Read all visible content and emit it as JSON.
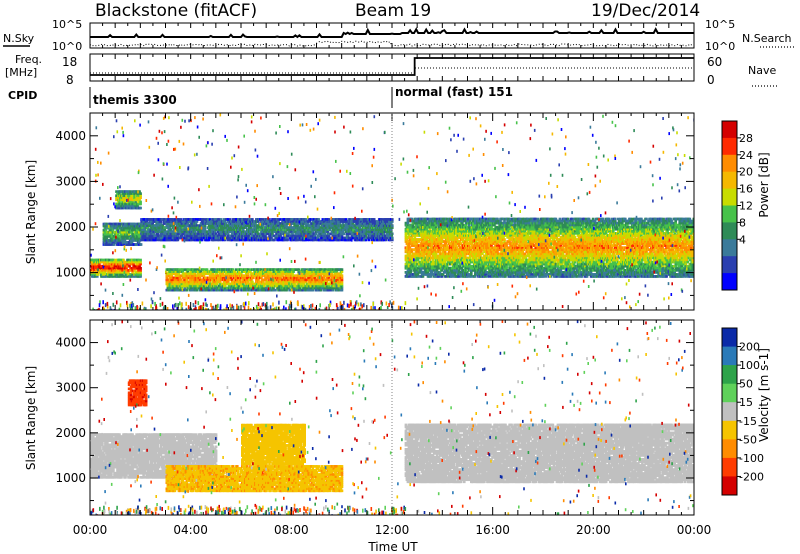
{
  "header": {
    "radar": "Blackstone (fitACF)",
    "beam": "Beam 19",
    "date": "19/Dec/2014"
  },
  "top_panels": {
    "nsky_label": "N.Sky",
    "nsky_ticks": [
      "10^5",
      "10^0"
    ],
    "nsearch_label": "N.Search",
    "nsearch_ticks": [
      "10^5",
      "10^0"
    ],
    "freq_label": "Freq.",
    "freq_unit": "[MHz]",
    "freq_ticks": [
      "18",
      "8"
    ],
    "nave_label": "Nave",
    "nave_ticks": [
      "60",
      "0"
    ],
    "cpid_label": "CPID",
    "cpid_segments": [
      {
        "label": "themis 3300",
        "start_hour": 0.0,
        "end_hour": 12.0
      },
      {
        "label": "normal (fast) 151",
        "start_hour": 12.0,
        "end_hour": 24.0
      }
    ]
  },
  "chart_data": [
    {
      "type": "heatmap",
      "parameter": "Power",
      "colorbar_label": "Power [dB]",
      "colorbar_ticks": [
        "28",
        "24",
        "20",
        "16",
        "12",
        "8",
        "4"
      ],
      "colorbar_colors": [
        "#d40000",
        "#ff2a00",
        "#ff8c00",
        "#f5b800",
        "#c8dc00",
        "#47c24a",
        "#2e8b57",
        "#3a7a9a",
        "#2a3fb0",
        "#0000ff"
      ],
      "vmin": 0,
      "vmax": 32,
      "ylabel": "Slant Range [km]",
      "yticks": [
        "4000",
        "3000",
        "2000",
        "1000"
      ],
      "ylim": [
        180,
        4500
      ],
      "xlim": [
        0,
        24
      ],
      "bands": [
        {
          "hour": [
            0.0,
            2.0
          ],
          "range": [
            900,
            1300
          ],
          "level": 28
        },
        {
          "hour": [
            0.5,
            2.0
          ],
          "range": [
            1600,
            2100
          ],
          "level": 14
        },
        {
          "hour": [
            1.0,
            2.0
          ],
          "range": [
            2400,
            2800
          ],
          "level": 18
        },
        {
          "hour": [
            2.0,
            12.0
          ],
          "range": [
            1700,
            2200
          ],
          "level": 10
        },
        {
          "hour": [
            3.0,
            10.0
          ],
          "range": [
            600,
            1100
          ],
          "level": 24
        },
        {
          "hour": [
            12.5,
            24.0
          ],
          "range": [
            900,
            2200
          ],
          "level": 22
        }
      ]
    },
    {
      "type": "heatmap",
      "parameter": "Velocity",
      "colorbar_label": "Velocity [m s-1]",
      "colorbar_ticks": [
        "200",
        "100",
        "50",
        "15",
        "-15",
        "-50",
        "-100",
        "-200"
      ],
      "colorbar_colors": [
        "#0a2aa8",
        "#2a7ab8",
        "#2ea34a",
        "#5fd15a",
        "#c0c0c0",
        "#f5c400",
        "#ff8c00",
        "#ff3c00",
        "#d40000"
      ],
      "vmin": -250,
      "vmax": 250,
      "ylabel": "Slant Range [km]",
      "yticks": [
        "4000",
        "3000",
        "2000",
        "1000"
      ],
      "ylim": [
        180,
        4500
      ],
      "xlim": [
        0,
        24
      ],
      "bands": [
        {
          "hour": [
            0.0,
            5.0
          ],
          "range": [
            1000,
            2000
          ],
          "level": 0
        },
        {
          "hour": [
            1.5,
            2.2
          ],
          "range": [
            2600,
            3200
          ],
          "level": -180
        },
        {
          "hour": [
            3.0,
            10.0
          ],
          "range": [
            700,
            1300
          ],
          "level": -70
        },
        {
          "hour": [
            6.0,
            8.5
          ],
          "range": [
            1300,
            2200
          ],
          "level": -60
        },
        {
          "hour": [
            12.5,
            24.0
          ],
          "range": [
            900,
            2200
          ],
          "level": 0
        }
      ]
    }
  ],
  "time_axis": {
    "ticks": [
      "00:00",
      "04:00",
      "08:00",
      "12:00",
      "16:00",
      "20:00",
      "00:00"
    ],
    "tick_hours": [
      0,
      4,
      8,
      12,
      16,
      20,
      24
    ],
    "xlabel": "Time UT"
  }
}
